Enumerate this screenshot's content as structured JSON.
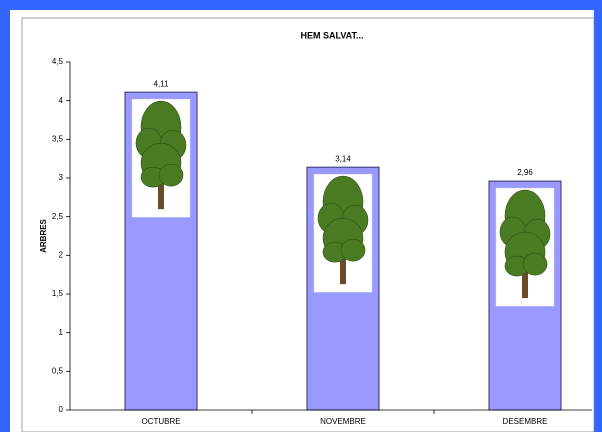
{
  "chart_data": {
    "type": "bar",
    "title": "HEM SALVAT...",
    "y_label": "ARBRES",
    "categories": [
      "OCTUBRE",
      "NOVEMBRE",
      "DESEMBRE"
    ],
    "values": [
      4.11,
      3.14,
      2.96
    ],
    "value_labels": [
      "4,11",
      "3,14",
      "2,96"
    ],
    "color": "#9999ff",
    "ylim": [
      0,
      4.5
    ],
    "yticks": [
      0,
      {
        "value": 0.5,
        "label": "0,5"
      },
      1,
      {
        "value": 1.5,
        "label": "1,5"
      },
      2,
      {
        "value": 2.5,
        "label": "2,5"
      },
      3,
      {
        "value": 3.5,
        "label": "3,5"
      },
      4,
      {
        "value": 4.5,
        "label": "4,5"
      }
    ]
  }
}
